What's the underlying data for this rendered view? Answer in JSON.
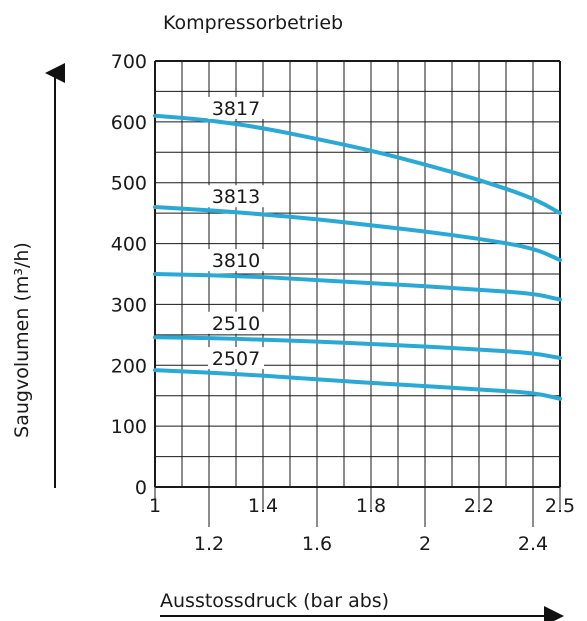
{
  "chart_data": {
    "type": "line",
    "title": "Kompressorbetrieb",
    "xlabel": "Ausstossdruck (bar abs)",
    "ylabel": "Saugvolumen (m³/h)",
    "xlim": [
      1,
      2.5
    ],
    "ylim": [
      0,
      700
    ],
    "x_ticks_top": [
      "1",
      "1.4",
      "1.8",
      "2.2",
      "2.5"
    ],
    "x_ticks_bottom": [
      "1.2",
      "1.6",
      "2",
      "2.4"
    ],
    "y_ticks": [
      "0",
      "100",
      "200",
      "300",
      "400",
      "500",
      "600",
      "700"
    ],
    "grid": true,
    "line_color": "#2aa8d6",
    "series": [
      {
        "name": "3817",
        "x": [
          1.0,
          1.2,
          1.4,
          1.6,
          1.8,
          2.0,
          2.2,
          2.4,
          2.5
        ],
        "y": [
          610,
          603,
          590,
          572,
          553,
          530,
          505,
          475,
          450
        ]
      },
      {
        "name": "3813",
        "x": [
          1.0,
          1.2,
          1.4,
          1.6,
          1.8,
          2.0,
          2.2,
          2.4,
          2.5
        ],
        "y": [
          460,
          455,
          448,
          440,
          430,
          420,
          408,
          393,
          373
        ]
      },
      {
        "name": "3810",
        "x": [
          1.0,
          1.2,
          1.4,
          1.6,
          1.8,
          2.0,
          2.2,
          2.4,
          2.5
        ],
        "y": [
          350,
          348,
          345,
          340,
          335,
          330,
          324,
          318,
          308
        ]
      },
      {
        "name": "2510",
        "x": [
          1.0,
          1.2,
          1.4,
          1.6,
          1.8,
          2.0,
          2.2,
          2.4,
          2.5
        ],
        "y": [
          246,
          245,
          242,
          239,
          235,
          231,
          226,
          220,
          212
        ]
      },
      {
        "name": "2507",
        "x": [
          1.0,
          1.2,
          1.4,
          1.6,
          1.8,
          2.0,
          2.2,
          2.4,
          2.5
        ],
        "y": [
          192,
          188,
          183,
          177,
          171,
          166,
          160,
          155,
          145
        ]
      }
    ]
  }
}
